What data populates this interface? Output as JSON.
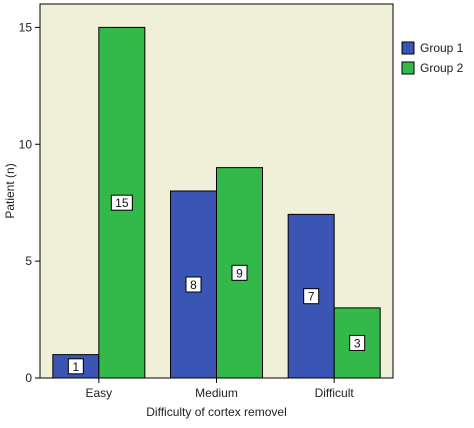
{
  "chart_data": {
    "type": "bar",
    "title": "",
    "xlabel": "Difficulty of cortex removel",
    "ylabel": "Patient (n)",
    "categories": [
      "Easy",
      "Medium",
      "Difficult"
    ],
    "series": [
      {
        "name": "Group 1",
        "values": [
          1,
          8,
          7
        ],
        "color": "#3b55b4"
      },
      {
        "name": "Group 2",
        "values": [
          15,
          9,
          3
        ],
        "color": "#33b84a"
      }
    ],
    "ylim": [
      0,
      16
    ],
    "yticks": [
      0,
      5,
      10,
      15
    ],
    "grid": false,
    "legend_position": "right",
    "plot_background": "#f0f0d8",
    "data_labels": true
  }
}
